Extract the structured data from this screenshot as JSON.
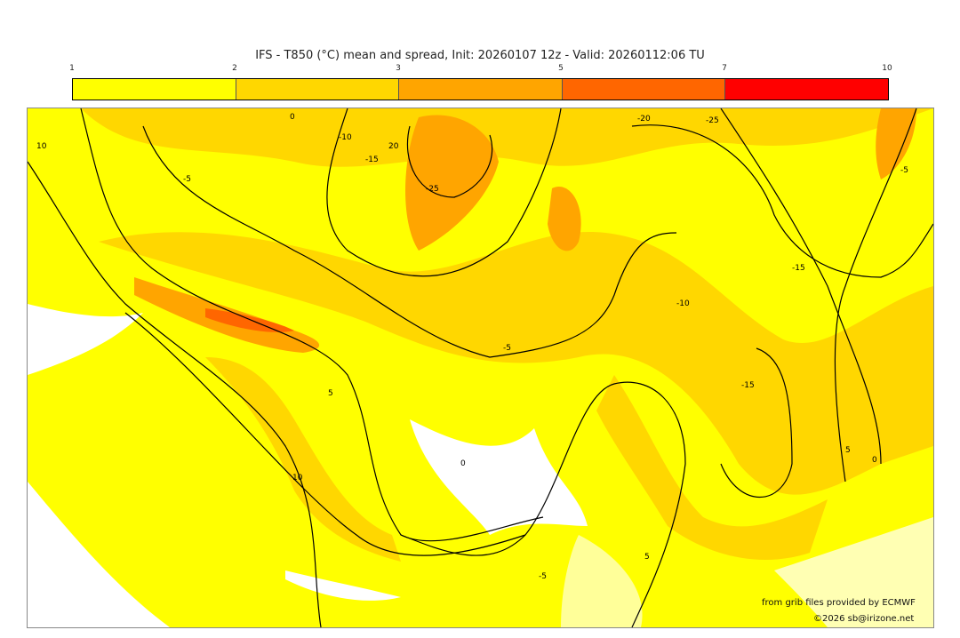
{
  "title": "IFS - T850 (°C) mean and spread, Init: 20260107 12z - Valid: 20260112:06 TU",
  "colorbar": {
    "ticks": [
      "1",
      "2",
      "3",
      "5",
      "7",
      "10"
    ],
    "colors": [
      "#ffff00",
      "#ffd700",
      "#ffa500",
      "#ff6600",
      "#ff0000"
    ]
  },
  "contour_labels": [
    "10",
    "-5",
    "0",
    "-10",
    "-15",
    "20",
    "-25",
    "-20",
    "-25",
    "-5",
    "-15",
    "-5",
    "5",
    "-10",
    "-15",
    "5",
    "10",
    "0",
    "5",
    "0",
    "-5"
  ],
  "credits": {
    "source": "from grib files provided by ECMWF",
    "copyright": "©2026 sb@irizone.net"
  }
}
